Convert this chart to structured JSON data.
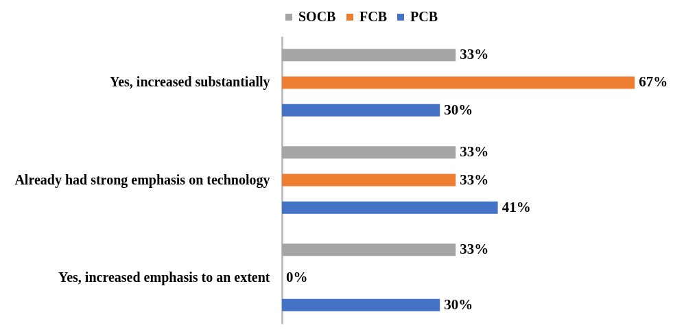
{
  "chart_data": {
    "type": "bar",
    "orientation": "horizontal",
    "categories": [
      "Yes, increased substantially",
      "Already had strong emphasis on technology",
      "Yes, increased emphasis to an extent"
    ],
    "series": [
      {
        "name": "SOCB",
        "color": "#a5a5a5",
        "values": [
          33,
          33,
          33
        ],
        "value_labels": [
          "33%",
          "33%",
          "33%"
        ]
      },
      {
        "name": "FCB",
        "color": "#ed7d31",
        "values": [
          67,
          33,
          0
        ],
        "value_labels": [
          "67%",
          "33%",
          "0%"
        ]
      },
      {
        "name": "PCB",
        "color": "#4472c4",
        "values": [
          30,
          41,
          30
        ],
        "value_labels": [
          "30%",
          "41%",
          "30%"
        ]
      }
    ],
    "legend": "top",
    "grid": false
  }
}
